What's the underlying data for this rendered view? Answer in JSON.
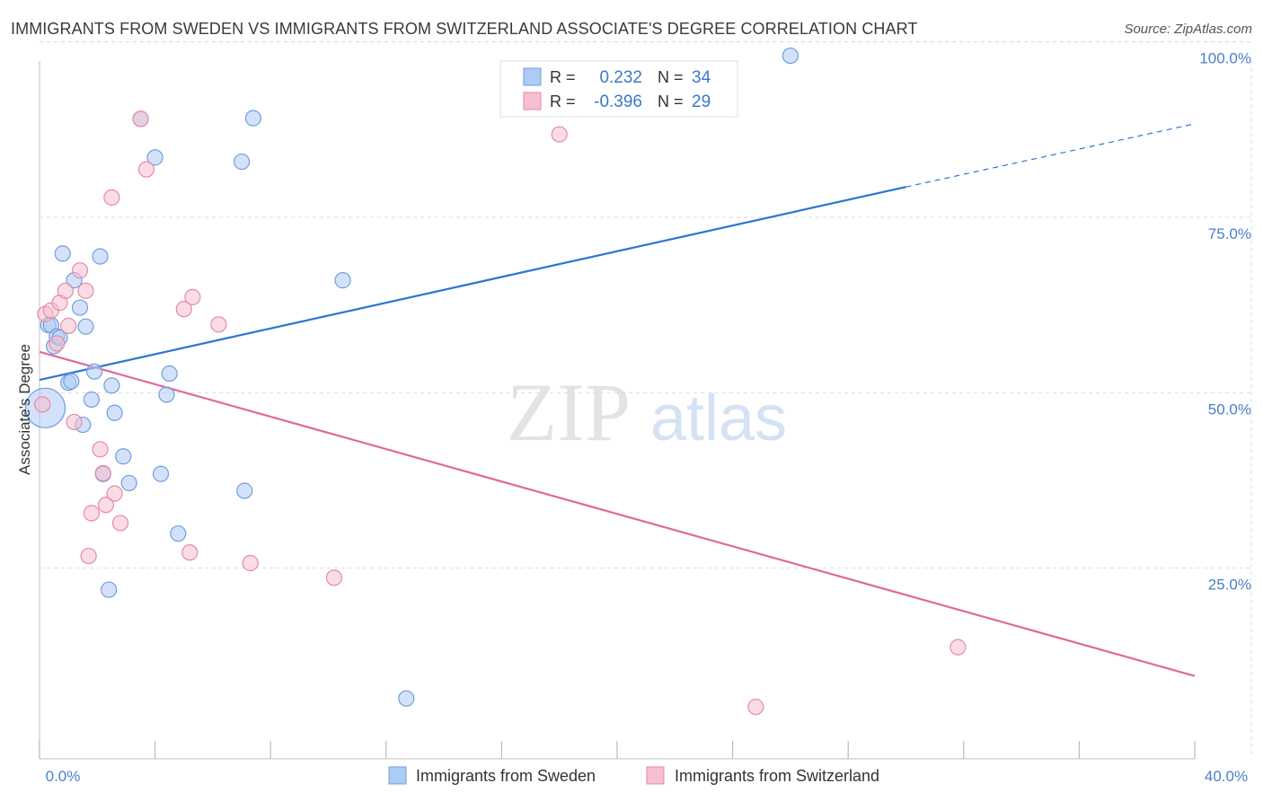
{
  "title": "IMMIGRANTS FROM SWEDEN VS IMMIGRANTS FROM SWITZERLAND ASSOCIATE'S DEGREE CORRELATION CHART",
  "source": "Source: ZipAtlas.com",
  "watermark": {
    "zip": "ZIP",
    "atlas": "atlas"
  },
  "colors": {
    "sweden_fill": "#aecbf5",
    "sweden_stroke": "#6f9fdc",
    "sweden_line": "#2f74d0",
    "swiss_fill": "#f7bfd0",
    "swiss_stroke": "#e48aa8",
    "swiss_line": "#e0699a",
    "axis_label": "#4a7fc8",
    "grid": "#dddddd"
  },
  "legend_top": [
    {
      "r_label": "R =",
      "r_value": "0.232",
      "n_label": "N =",
      "n_value": "34"
    },
    {
      "r_label": "R =",
      "r_value": "-0.396",
      "n_label": "N =",
      "n_value": "29"
    }
  ],
  "chart_data": {
    "type": "scatter",
    "title": "IMMIGRANTS FROM SWEDEN VS IMMIGRANTS FROM SWITZERLAND ASSOCIATE'S DEGREE CORRELATION CHART",
    "xlabel": "",
    "ylabel": "Associate's Degree",
    "xlim": [
      0,
      40
    ],
    "ylim": [
      0,
      102
    ],
    "x_tick_labels": [
      "0.0%",
      "40.0%"
    ],
    "y_ticks": [
      25,
      50,
      75,
      100
    ],
    "y_tick_labels": [
      "25.0%",
      "50.0%",
      "75.0%",
      "100.0%"
    ],
    "grid": true,
    "legend_position": "bottom",
    "series": [
      {
        "name": "Immigrants from Sweden",
        "points": [
          [
            0.2,
            50.0
          ],
          [
            0.3,
            61.8
          ],
          [
            0.4,
            61.8
          ],
          [
            0.5,
            58.8
          ],
          [
            0.6,
            60.2
          ],
          [
            0.7,
            60.0
          ],
          [
            0.8,
            72.0
          ],
          [
            1.0,
            53.6
          ],
          [
            1.1,
            53.8
          ],
          [
            1.2,
            68.2
          ],
          [
            1.4,
            64.3
          ],
          [
            1.5,
            47.6
          ],
          [
            1.6,
            61.6
          ],
          [
            1.8,
            51.2
          ],
          [
            1.9,
            55.2
          ],
          [
            2.1,
            71.6
          ],
          [
            2.2,
            40.6
          ],
          [
            2.4,
            24.1
          ],
          [
            2.5,
            53.2
          ],
          [
            2.6,
            49.3
          ],
          [
            2.9,
            43.1
          ],
          [
            3.1,
            39.3
          ],
          [
            3.5,
            91.2
          ],
          [
            4.0,
            85.7
          ],
          [
            4.2,
            40.6
          ],
          [
            4.4,
            51.9
          ],
          [
            4.5,
            54.9
          ],
          [
            4.8,
            32.1
          ],
          [
            7.0,
            85.1
          ],
          [
            7.1,
            38.2
          ],
          [
            7.4,
            91.3
          ],
          [
            10.5,
            68.2
          ],
          [
            12.7,
            8.6
          ],
          [
            26.0,
            100.2
          ]
        ],
        "trend": {
          "x": [
            0,
            30
          ],
          "y": [
            54.0,
            81.5
          ],
          "dashed_to": {
            "x": 40,
            "y": 90.5
          }
        }
      },
      {
        "name": "Immigrants from Switzerland",
        "points": [
          [
            0.1,
            50.5
          ],
          [
            0.2,
            63.4
          ],
          [
            0.4,
            63.9
          ],
          [
            0.6,
            59.2
          ],
          [
            0.7,
            65.0
          ],
          [
            0.9,
            66.7
          ],
          [
            1.0,
            61.7
          ],
          [
            1.2,
            48.0
          ],
          [
            1.4,
            69.6
          ],
          [
            1.6,
            66.7
          ],
          [
            1.7,
            28.9
          ],
          [
            1.8,
            35.0
          ],
          [
            2.1,
            44.1
          ],
          [
            2.2,
            40.7
          ],
          [
            2.3,
            36.2
          ],
          [
            2.5,
            80.0
          ],
          [
            2.6,
            37.8
          ],
          [
            2.8,
            33.6
          ],
          [
            3.5,
            91.2
          ],
          [
            3.7,
            84.0
          ],
          [
            5.0,
            64.1
          ],
          [
            5.2,
            29.4
          ],
          [
            5.3,
            65.8
          ],
          [
            6.2,
            61.9
          ],
          [
            7.3,
            27.9
          ],
          [
            10.2,
            25.8
          ],
          [
            18.0,
            89.0
          ],
          [
            24.8,
            7.4
          ],
          [
            31.8,
            15.9
          ]
        ],
        "trend": {
          "x": [
            0,
            40
          ],
          "y": [
            58.0,
            11.8
          ]
        }
      }
    ]
  }
}
